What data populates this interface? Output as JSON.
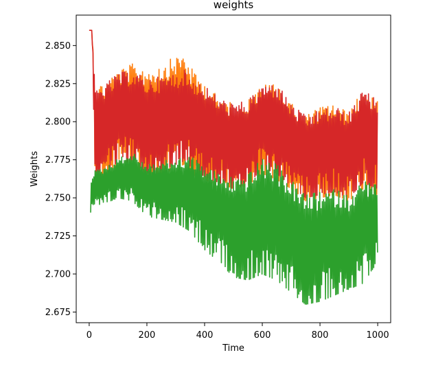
{
  "chart_data": {
    "type": "line",
    "title": "weights",
    "xlabel": "Time",
    "ylabel": "Weights",
    "xlim": [
      -45,
      1045
    ],
    "ylim": [
      2.668,
      2.87
    ],
    "xticks": [
      0,
      200,
      400,
      600,
      800,
      1000
    ],
    "yticks": [
      2.675,
      2.7,
      2.725,
      2.75,
      2.775,
      2.8,
      2.825,
      2.85
    ],
    "ytick_labels": [
      "2.675",
      "2.700",
      "2.725",
      "2.750",
      "2.775",
      "2.800",
      "2.825",
      "2.850"
    ],
    "grid": false,
    "series": [
      {
        "color": "#ff7f0e",
        "x": [
          0,
          5,
          10,
          20,
          50,
          100,
          150,
          200,
          250,
          300,
          330,
          350,
          400,
          450,
          500,
          550,
          600,
          650,
          700,
          750,
          800,
          850,
          900,
          950,
          1000
        ],
        "upper": [
          2.86,
          2.86,
          2.86,
          2.824,
          2.826,
          2.834,
          2.838,
          2.836,
          2.838,
          2.843,
          2.846,
          2.836,
          2.826,
          2.816,
          2.812,
          2.815,
          2.824,
          2.826,
          2.812,
          2.804,
          2.81,
          2.812,
          2.806,
          2.822,
          2.814
        ],
        "lower": [
          2.86,
          2.86,
          2.86,
          2.76,
          2.762,
          2.77,
          2.772,
          2.762,
          2.764,
          2.77,
          2.772,
          2.766,
          2.762,
          2.758,
          2.756,
          2.758,
          2.766,
          2.762,
          2.756,
          2.748,
          2.75,
          2.752,
          2.748,
          2.756,
          2.752
        ]
      },
      {
        "color": "#d62728",
        "x": [
          0,
          5,
          10,
          20,
          50,
          100,
          150,
          200,
          250,
          300,
          330,
          350,
          400,
          450,
          500,
          550,
          600,
          650,
          700,
          750,
          800,
          850,
          900,
          950,
          1000
        ],
        "upper": [
          2.86,
          2.86,
          2.86,
          2.822,
          2.824,
          2.832,
          2.834,
          2.828,
          2.83,
          2.832,
          2.834,
          2.83,
          2.824,
          2.816,
          2.812,
          2.814,
          2.824,
          2.826,
          2.812,
          2.804,
          2.808,
          2.81,
          2.806,
          2.822,
          2.814
        ],
        "lower": [
          2.86,
          2.86,
          2.86,
          2.764,
          2.766,
          2.772,
          2.774,
          2.766,
          2.768,
          2.772,
          2.774,
          2.77,
          2.764,
          2.76,
          2.756,
          2.758,
          2.77,
          2.766,
          2.758,
          2.75,
          2.752,
          2.754,
          2.75,
          2.76,
          2.756
        ]
      },
      {
        "color": "#2ca02c",
        "x": [
          5,
          10,
          20,
          50,
          100,
          150,
          200,
          250,
          300,
          350,
          400,
          450,
          500,
          550,
          600,
          650,
          700,
          750,
          800,
          850,
          900,
          950,
          1000
        ],
        "upper": [
          2.762,
          2.766,
          2.768,
          2.77,
          2.776,
          2.78,
          2.772,
          2.774,
          2.776,
          2.778,
          2.772,
          2.766,
          2.764,
          2.766,
          2.776,
          2.772,
          2.762,
          2.752,
          2.754,
          2.756,
          2.752,
          2.762,
          2.76
        ],
        "lower": [
          2.74,
          2.742,
          2.744,
          2.746,
          2.75,
          2.748,
          2.738,
          2.736,
          2.734,
          2.728,
          2.716,
          2.708,
          2.698,
          2.696,
          2.7,
          2.696,
          2.688,
          2.68,
          2.682,
          2.686,
          2.69,
          2.694,
          2.708
        ]
      }
    ]
  }
}
